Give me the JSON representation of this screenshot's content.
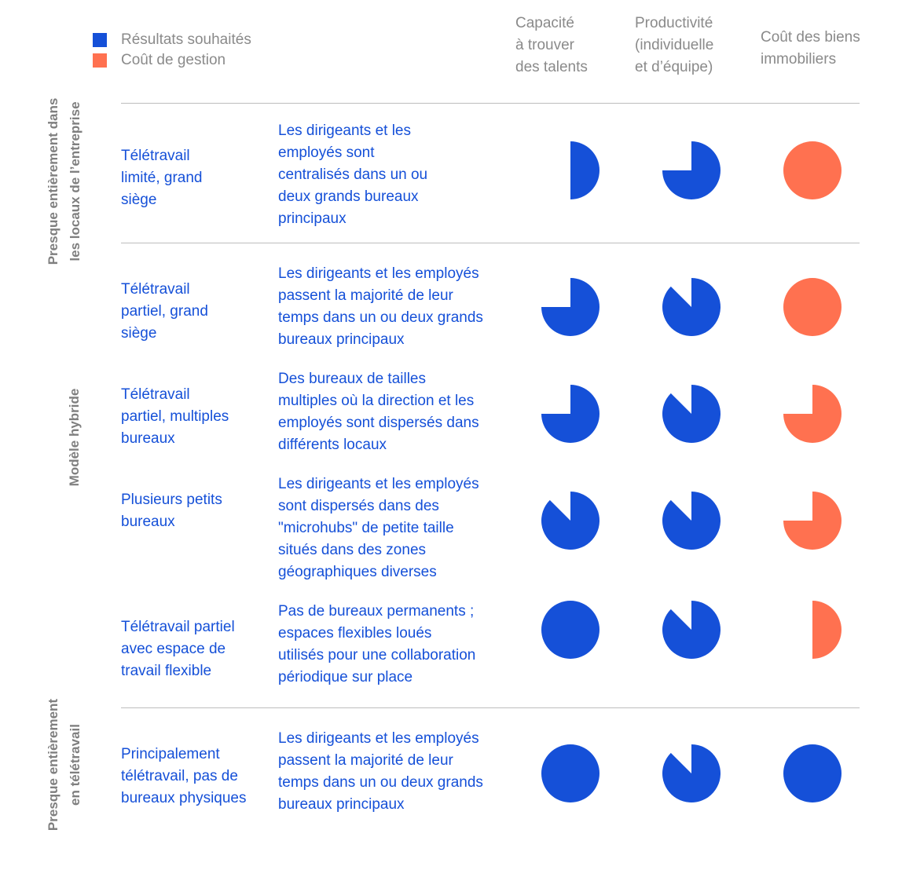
{
  "legend": [
    {
      "label": "Résultats souhaités",
      "color": "#1550d8"
    },
    {
      "label": "Coût de gestion",
      "color": "#ff7150"
    }
  ],
  "columns": [
    {
      "label": "Capacité\nà trouver\ndes talents"
    },
    {
      "label": "Productivité\n(individuelle\net d’équipe)"
    },
    {
      "label": "Coût des biens\nimmobiliers"
    }
  ],
  "groups": [
    {
      "label": "Presque entièrement dans\nles locaux de l’entreprise"
    },
    {
      "label": "Modèle hybride"
    },
    {
      "label": "Presque entièrement\nen télétravail"
    }
  ],
  "chart_data": {
    "type": "pie-matrix",
    "encoding": "Each cell is a partial pie; the value is the filled fraction (0–1) drawn clockwise from 12 o’clock. Blue = Résultats souhaités, orange = Coût de gestion.",
    "rows": [
      {
        "title": "Télétravail\nlimité, grand\nsiège",
        "description": "Les dirigeants et les\nemployés sont\ncentralisés dans un ou\ndeux grands bureaux\nprincipaux",
        "values": [
          0.5,
          0.75,
          1.0
        ],
        "kinds": [
          "blue",
          "blue",
          "orange"
        ]
      },
      {
        "title": "Télétravail\npartiel, grand\nsiège",
        "description": "Les dirigeants et les employés\npassent la majorité de leur\ntemps dans un ou deux grands\nbureaux principaux",
        "values": [
          0.75,
          0.875,
          1.0
        ],
        "kinds": [
          "blue",
          "blue",
          "orange"
        ]
      },
      {
        "title": "Télétravail\npartiel, multiples\nbureaux",
        "description": "Des bureaux de tailles\nmultiples où la direction et les\nemployés sont dispersés dans\ndifférents locaux",
        "values": [
          0.75,
          0.875,
          0.75
        ],
        "kinds": [
          "blue",
          "blue",
          "orange"
        ]
      },
      {
        "title": "Plusieurs petits\nbureaux",
        "description": "Les dirigeants et les employés\nsont dispersés dans des\n\"microhubs\" de petite taille\nsitués dans des zones\ngéographiques diverses",
        "values": [
          0.875,
          0.875,
          0.75
        ],
        "kinds": [
          "blue",
          "blue",
          "orange"
        ]
      },
      {
        "title": "Télétravail partiel\navec espace de\ntravail flexible",
        "description": "Pas de bureaux permanents ;\nespaces flexibles loués\nutilisés pour une collaboration\npériodique sur place",
        "values": [
          1.0,
          0.875,
          0.5
        ],
        "kinds": [
          "blue",
          "blue",
          "orange"
        ]
      },
      {
        "title": "Principalement\ntélétravail, pas de\nbureaux physiques",
        "description": "Les dirigeants et les employés\npassent la majorité de leur\ntemps dans un ou deux grands\nbureaux principaux",
        "values": [
          1.0,
          0.875,
          1.0
        ],
        "kinds": [
          "blue",
          "blue",
          "blue"
        ]
      }
    ]
  }
}
